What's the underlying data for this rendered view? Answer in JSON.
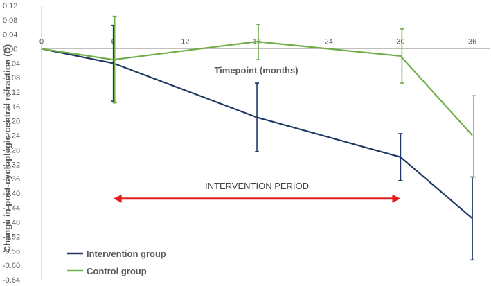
{
  "chart_data": {
    "type": "line",
    "title": "",
    "xlabel": "Timepoint (months)",
    "ylabel": "Change in post-cycloplegic central refraction (D)",
    "x": [
      0,
      6,
      18,
      30,
      36
    ],
    "xticks": [
      0,
      6,
      12,
      18,
      24,
      30,
      36
    ],
    "xticks_labels": [
      "0",
      "6",
      "12",
      "18",
      "24",
      "30",
      "36"
    ],
    "xlim": [
      0,
      37.5
    ],
    "ylim": [
      -0.64,
      0.12
    ],
    "yticks_labels": [
      "0.12",
      "0.08",
      "0.04",
      "0.00",
      "-0.04",
      "-0.08",
      "-0.12",
      "-0.16",
      "-0.20",
      "-0.24",
      "-0.28",
      "-0.32",
      "-0.36",
      "-0.40",
      "-0.44",
      "-0.48",
      "-0.52",
      "-0.56",
      "-0.60",
      "-0.64"
    ],
    "grid": false,
    "legend_position": "bottom-left",
    "series": [
      {
        "name": "Intervention group",
        "color": "#1f3864",
        "values": [
          0.0,
          -0.04,
          -0.19,
          -0.3,
          -0.47
        ],
        "error_low": [
          null,
          -0.145,
          -0.285,
          -0.365,
          -0.585
        ],
        "error_high": [
          null,
          0.065,
          -0.095,
          -0.235,
          -0.355
        ]
      },
      {
        "name": "Control group",
        "color": "#70ad47",
        "values": [
          0.0,
          -0.03,
          0.02,
          -0.02,
          -0.24
        ],
        "error_low": [
          null,
          -0.15,
          -0.03,
          -0.095,
          -0.355
        ],
        "error_high": [
          null,
          0.09,
          0.068,
          0.055,
          -0.13
        ]
      }
    ],
    "annotations": [
      {
        "text": "INTERVENTION PERIOD",
        "x_start": 6,
        "x_end": 30,
        "y": -0.415,
        "color": "#e02020"
      }
    ]
  }
}
